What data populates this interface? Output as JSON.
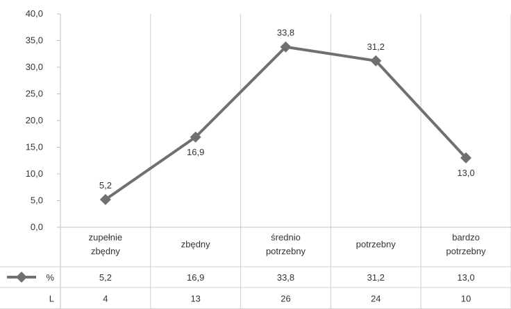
{
  "chart_data": {
    "type": "line",
    "categories": [
      [
        "zupełnie",
        "zbędny"
      ],
      [
        "zbędny"
      ],
      [
        "średnio",
        "potrzebny"
      ],
      [
        "potrzebny"
      ],
      [
        "bardzo",
        "potrzebny"
      ]
    ],
    "series": [
      {
        "name": "%",
        "values": [
          5.2,
          16.9,
          33.8,
          31.2,
          13.0
        ],
        "color": "#707070"
      }
    ],
    "data_labels": [
      "5,2",
      "16,9",
      "33,8",
      "31,2",
      "13,0"
    ],
    "ylim": [
      0,
      40
    ],
    "yticks": [
      "0,0",
      "5,0",
      "10,0",
      "15,0",
      "20,0",
      "25,0",
      "30,0",
      "35,0",
      "40,0"
    ],
    "grid": "vertical",
    "marker": "diamond",
    "data_table": {
      "rows": [
        {
          "label": "%",
          "values": [
            "5,2",
            "16,9",
            "33,8",
            "31,2",
            "13,0"
          ],
          "legend_key": true
        },
        {
          "label": "L",
          "values": [
            "4",
            "13",
            "26",
            "24",
            "10"
          ],
          "legend_key": false
        }
      ]
    }
  }
}
